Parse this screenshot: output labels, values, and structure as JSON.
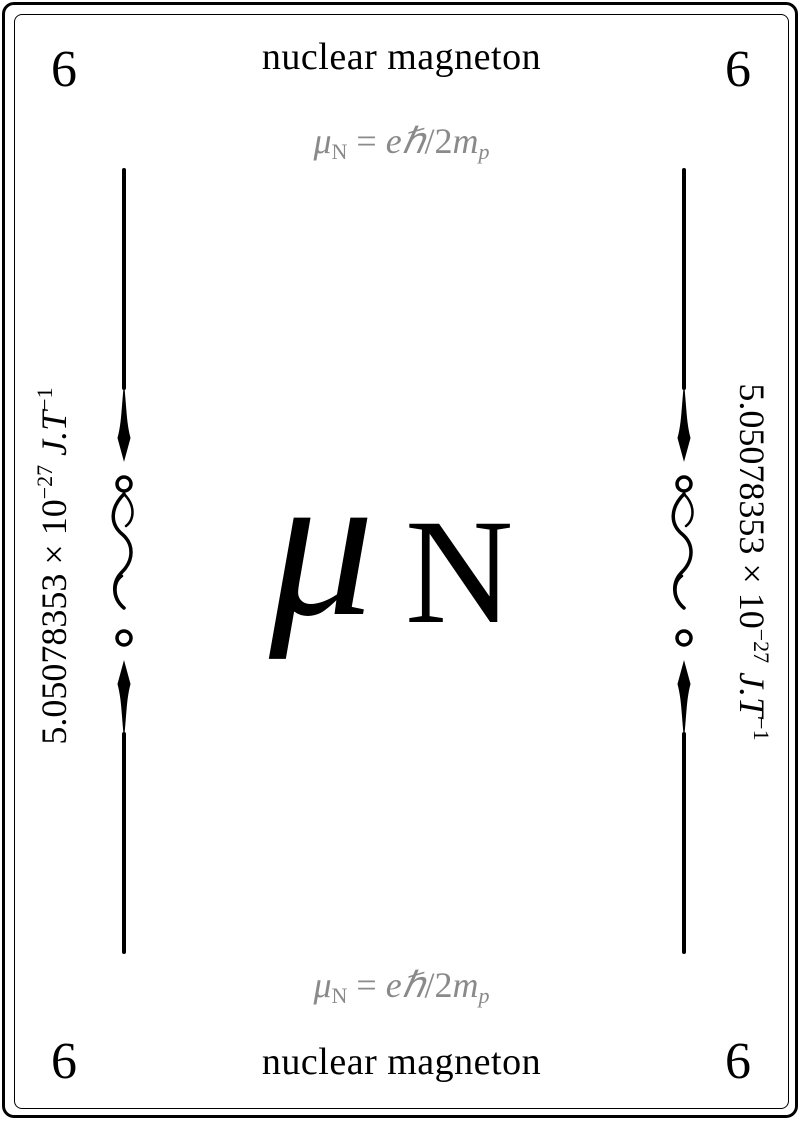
{
  "card": {
    "corner_value": "6",
    "name": "nuclear magneton",
    "formula": {
      "symbol": "μ",
      "symbol_sub": "N",
      "equals": " = ",
      "rhs_e": "e",
      "rhs_hbar": "ℏ",
      "rhs_slash": "/2",
      "rhs_m": "m",
      "rhs_m_sub": "p"
    },
    "center_symbol": {
      "mu": "μ",
      "sub": "N"
    },
    "side_value": {
      "mantissa": "5.05078353 × 10",
      "exponent": "−27",
      "unit_J": "J.T",
      "unit_exp": "−1"
    },
    "colors": {
      "text": "#000000",
      "formula": "#8a8a8a",
      "background": "#ffffff"
    },
    "icons": [
      "scroll-ornament-icon"
    ]
  }
}
